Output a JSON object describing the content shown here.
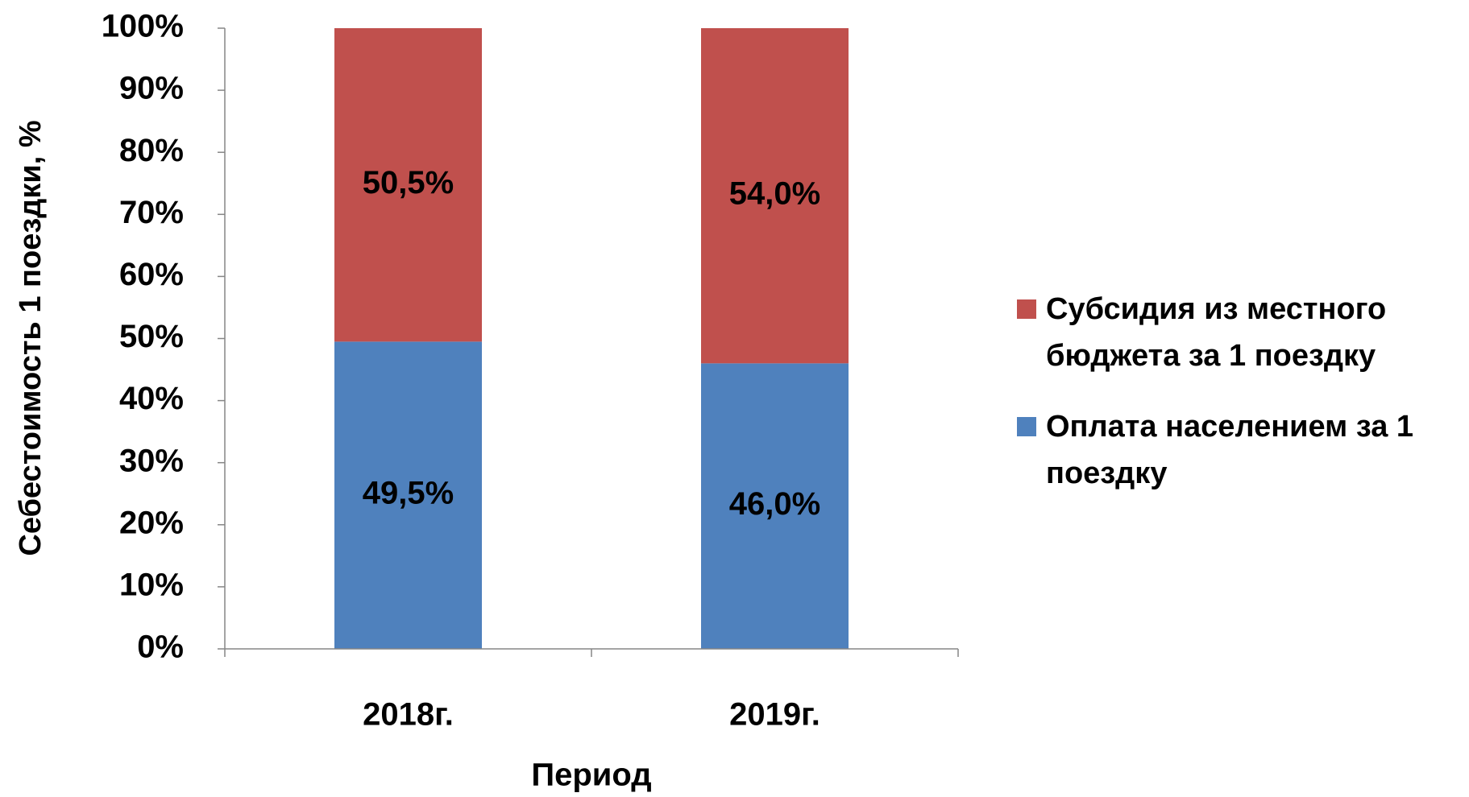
{
  "chart_data": {
    "type": "stacked_bar",
    "categories": [
      "2018г.",
      "2019г."
    ],
    "series": [
      {
        "name": "Оплата населением за 1 поездку",
        "color": "#4f81bd",
        "values": [
          49.5,
          46.0
        ],
        "value_labels": [
          "49,5%",
          "46,0%"
        ]
      },
      {
        "name": "Субсидия из местного бюджета за 1 поездку",
        "color": "#c0504d",
        "values": [
          50.5,
          54.0
        ],
        "value_labels": [
          "50,5%",
          "54,0%"
        ]
      }
    ],
    "x_label": "Период",
    "y_label": "Себестоимость 1 поездки, %",
    "ylim": [
      0,
      100
    ],
    "yticks": [
      {
        "value": 0,
        "label": "0%"
      },
      {
        "value": 10,
        "label": "10%"
      },
      {
        "value": 20,
        "label": "20%"
      },
      {
        "value": 30,
        "label": "30%"
      },
      {
        "value": 40,
        "label": "40%"
      },
      {
        "value": 50,
        "label": "50%"
      },
      {
        "value": 60,
        "label": "60%"
      },
      {
        "value": 70,
        "label": "70%"
      },
      {
        "value": 80,
        "label": "80%"
      },
      {
        "value": 90,
        "label": "90%"
      },
      {
        "value": 100,
        "label": "100%"
      }
    ],
    "legend": "right"
  }
}
